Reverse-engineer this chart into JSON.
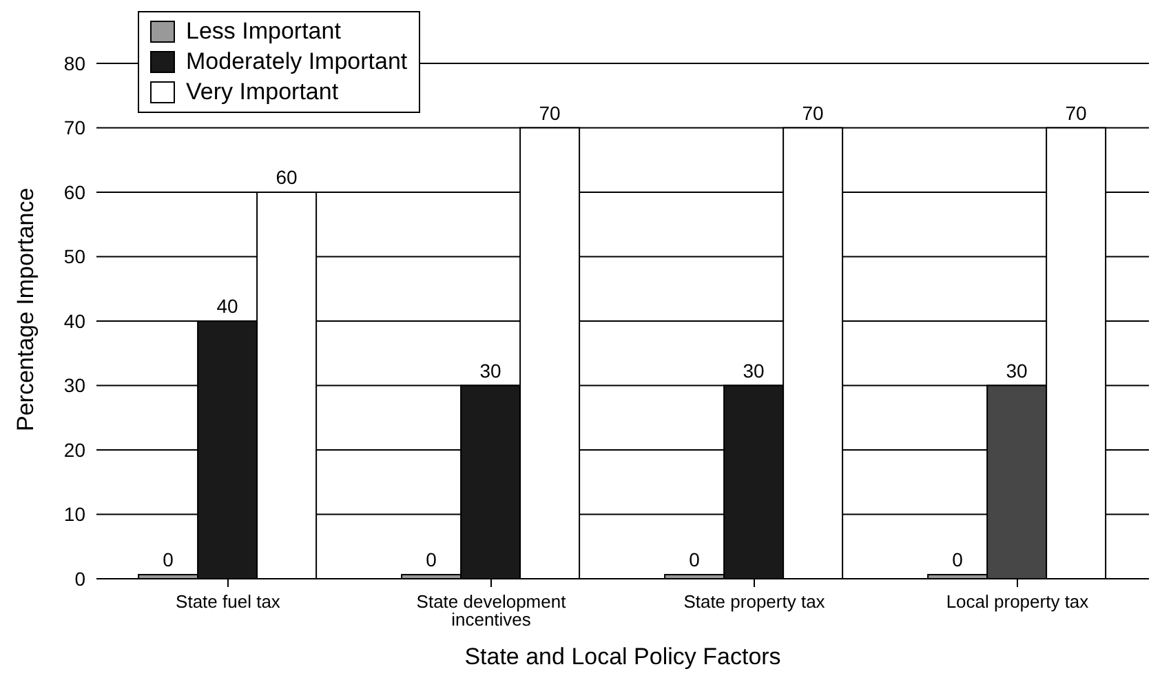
{
  "chart_data": {
    "type": "bar",
    "xlabel": "State and Local Policy Factors",
    "ylabel": "Percentage Importance",
    "categories": [
      "State fuel tax",
      "State development incentives",
      "State property tax",
      "Local property tax"
    ],
    "series": [
      {
        "name": "Less Important",
        "color": "#999999",
        "values": [
          0,
          0,
          0,
          0
        ]
      },
      {
        "name": "Moderately Important",
        "color": "#1a1a1a",
        "colors": [
          "#1a1a1a",
          "#1a1a1a",
          "#1a1a1a",
          "#474747"
        ],
        "values": [
          40,
          30,
          30,
          30
        ]
      },
      {
        "name": "Very Important",
        "color": "#ffffff",
        "values": [
          60,
          70,
          70,
          70
        ]
      }
    ],
    "ylim": [
      0,
      80
    ],
    "yticks": [
      0,
      10,
      20,
      30,
      40,
      50,
      60,
      70,
      80
    ],
    "grid": "y",
    "legend": "top left",
    "data_labels": true
  }
}
